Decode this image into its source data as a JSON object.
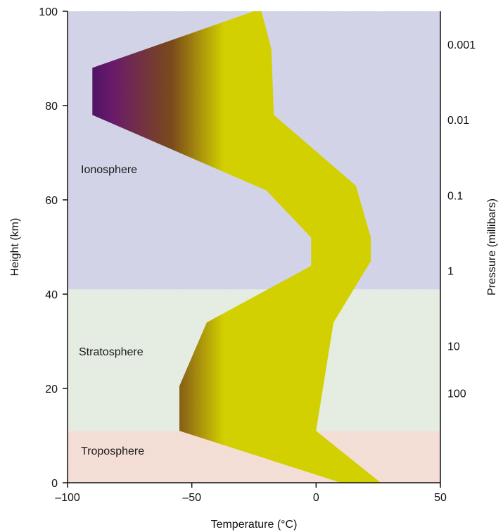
{
  "chart_data": {
    "type": "area",
    "title": "",
    "xlabel": "Temperature (°C)",
    "ylabel": "Height (km)",
    "y2label": "Pressure (millibars)",
    "xlim": [
      -100,
      50
    ],
    "ylim": [
      0,
      100
    ],
    "x_ticks": [
      -100,
      -50,
      0,
      50
    ],
    "x_tick_labels": [
      "–100",
      "–50",
      "0",
      "50"
    ],
    "y_ticks": [
      0,
      20,
      40,
      60,
      80,
      100
    ],
    "y_tick_labels": [
      "0",
      "20",
      "40",
      "60",
      "80",
      "100"
    ],
    "pressure_ticks": [
      {
        "label": "0.001",
        "height": 93
      },
      {
        "label": "0.01",
        "height": 77
      },
      {
        "label": "0.1",
        "height": 61
      },
      {
        "label": "1",
        "height": 45
      },
      {
        "label": "10",
        "height": 29
      },
      {
        "label": "100",
        "height": 19
      }
    ],
    "layers": [
      {
        "name": "Troposphere",
        "from": 0,
        "to": 11,
        "color": "#f3dcd3"
      },
      {
        "name": "Stratosphere",
        "from": 11,
        "to": 41,
        "color": "#e3ebe0"
      },
      {
        "name": "Ionosphere",
        "from": 41,
        "to": 100,
        "color": "#cfd0e6"
      }
    ],
    "layer_labels": [
      "Troposphere",
      "Stratosphere",
      "Ionosphere"
    ],
    "temperature_band": {
      "left_edge": [
        {
          "height": 0,
          "temp": 10
        },
        {
          "height": 11,
          "temp": -55
        },
        {
          "height": 20.5,
          "temp": -55
        },
        {
          "height": 34,
          "temp": -44
        },
        {
          "height": 46,
          "temp": -2
        },
        {
          "height": 52,
          "temp": -2
        },
        {
          "height": 62,
          "temp": -20
        },
        {
          "height": 78,
          "temp": -90
        },
        {
          "height": 88,
          "temp": -90
        },
        {
          "height": 100,
          "temp": -25
        }
      ],
      "right_edge": [
        {
          "height": 100,
          "temp": -22
        },
        {
          "height": 92,
          "temp": -18
        },
        {
          "height": 78,
          "temp": -17
        },
        {
          "height": 63,
          "temp": 16
        },
        {
          "height": 52,
          "temp": 22
        },
        {
          "height": 47,
          "temp": 22
        },
        {
          "height": 34,
          "temp": 7
        },
        {
          "height": 11,
          "temp": 0
        },
        {
          "height": 0,
          "temp": 26
        }
      ],
      "colors": {
        "cold": "#2e0a5e",
        "mid": "#6a1a6a",
        "warm": "#7a4a1a",
        "hot": "#d2d000"
      }
    },
    "grid": false,
    "legend": "none"
  }
}
